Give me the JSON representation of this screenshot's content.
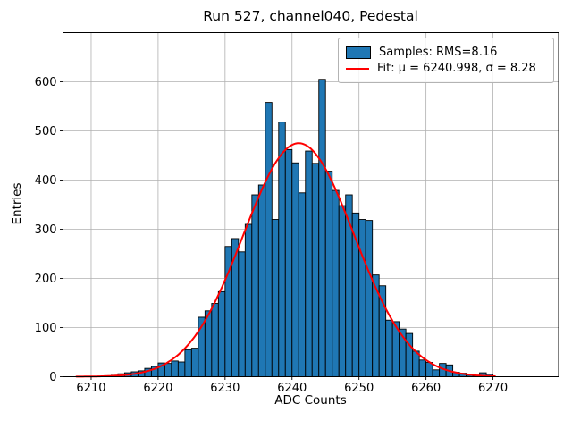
{
  "figure": {
    "title": "Run 527, channel040, Pedestal",
    "background": "#ffffff"
  },
  "legend": {
    "position": "upper-right",
    "items": [
      {
        "swatch": "blue-filled-rect",
        "label": "Samples: RMS=8.16"
      },
      {
        "swatch": "red-line",
        "label": "Fit: μ = 6240.998, σ = 8.28"
      }
    ]
  },
  "chart_data": {
    "type": "bar",
    "subtype": "histogram",
    "title": "Run 527, channel040, Pedestal",
    "xlabel": "ADC Counts",
    "ylabel": "Entries",
    "xlim": [
      6205.8,
      6279.8
    ],
    "ylim": [
      0,
      700
    ],
    "xticks": [
      6210,
      6220,
      6230,
      6240,
      6250,
      6260,
      6270
    ],
    "yticks": [
      0,
      100,
      200,
      300,
      400,
      500,
      600
    ],
    "grid": true,
    "legend_position": "upper right",
    "bin_width": 1,
    "bin_left_edges": [
      6212,
      6213,
      6214,
      6215,
      6216,
      6217,
      6218,
      6219,
      6220,
      6221,
      6222,
      6223,
      6224,
      6225,
      6226,
      6227,
      6228,
      6229,
      6230,
      6231,
      6232,
      6233,
      6234,
      6235,
      6236,
      6237,
      6238,
      6239,
      6240,
      6241,
      6242,
      6243,
      6244,
      6245,
      6246,
      6247,
      6248,
      6249,
      6250,
      6251,
      6252,
      6253,
      6254,
      6255,
      6256,
      6257,
      6258,
      6259,
      6260,
      6261,
      6262,
      6263,
      6264,
      6265,
      6266,
      6267,
      6268,
      6269
    ],
    "values": [
      2,
      3,
      6,
      8,
      10,
      12,
      17,
      21,
      28,
      27,
      32,
      30,
      55,
      58,
      121,
      134,
      149,
      173,
      265,
      281,
      254,
      310,
      370,
      390,
      558,
      320,
      518,
      462,
      435,
      374,
      459,
      434,
      605,
      418,
      379,
      348,
      370,
      333,
      320,
      318,
      207,
      185,
      115,
      112,
      97,
      88,
      52,
      34,
      29,
      14,
      27,
      24,
      9,
      7,
      3,
      2,
      8,
      5
    ],
    "series_label": "Samples: RMS=8.16",
    "rms": 8.16,
    "fit": {
      "label": "Fit: μ = 6240.998, σ = 8.28",
      "mu": 6240.998,
      "sigma": 8.28,
      "amplitude": 475,
      "domain": [
        6207.8,
        6270.4
      ]
    },
    "colors": {
      "bar_fill": "#1f77b4",
      "bar_edge": "#000000",
      "fit_line": "#ff0000",
      "grid": "#b0b0b0",
      "spine": "#000000",
      "background": "#ffffff"
    }
  }
}
